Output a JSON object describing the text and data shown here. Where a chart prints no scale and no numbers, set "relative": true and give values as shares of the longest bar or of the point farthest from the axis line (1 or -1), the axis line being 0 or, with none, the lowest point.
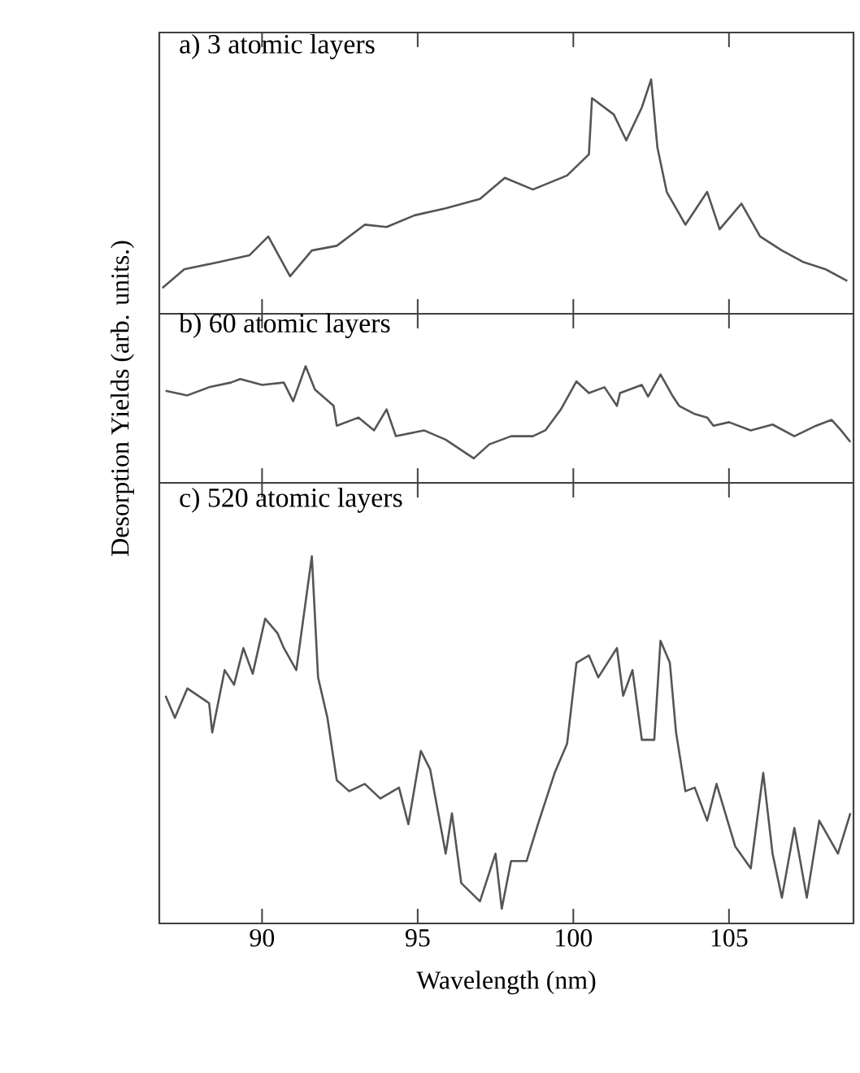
{
  "chart_data": [
    {
      "type": "line",
      "title": "a) 3 atomic layers",
      "relative": true,
      "xlim": [
        86.7,
        109
      ],
      "xticks": [
        90,
        95,
        100,
        105
      ],
      "tick_labels": false,
      "series": [
        {
          "color": "#555555",
          "x": [
            86.8,
            87.5,
            88.6,
            89.6,
            90.2,
            90.9,
            91.6,
            92.4,
            93.3,
            94.0,
            94.9,
            95.9,
            97.0,
            97.8,
            98.7,
            99.8,
            100.5,
            100.6,
            101.3,
            101.7,
            102.2,
            102.5,
            102.7,
            103.0,
            103.6,
            104.3,
            104.7,
            105.4,
            106.0,
            106.7,
            107.4,
            108.1,
            108.8
          ],
          "values": [
            0.11,
            0.19,
            0.22,
            0.25,
            0.33,
            0.16,
            0.27,
            0.29,
            0.38,
            0.37,
            0.42,
            0.45,
            0.49,
            0.58,
            0.53,
            0.59,
            0.68,
            0.92,
            0.85,
            0.74,
            0.88,
            1.0,
            0.71,
            0.52,
            0.38,
            0.52,
            0.36,
            0.47,
            0.33,
            0.27,
            0.22,
            0.19,
            0.14
          ]
        }
      ]
    },
    {
      "type": "line",
      "title": "b) 60 atomic layers",
      "ylabel": "Desorption Yields (arb. units.)",
      "relative": true,
      "xlim": [
        86.7,
        109
      ],
      "xticks": [
        90,
        95,
        100,
        105
      ],
      "tick_labels": false,
      "series": [
        {
          "color": "#555555",
          "x": [
            86.9,
            87.6,
            88.3,
            89.0,
            89.3,
            90.0,
            90.7,
            91.0,
            91.4,
            91.7,
            92.3,
            92.4,
            93.1,
            93.6,
            94.0,
            94.3,
            95.2,
            95.9,
            96.8,
            97.3,
            98.0,
            98.7,
            99.1,
            99.6,
            100.1,
            100.5,
            101.0,
            101.4,
            101.5,
            102.2,
            102.4,
            102.8,
            103.2,
            103.4,
            103.9,
            104.3,
            104.5,
            105.0,
            105.7,
            106.4,
            107.1,
            107.8,
            108.3,
            108.6,
            108.9
          ],
          "values": [
            0.79,
            0.75,
            0.82,
            0.86,
            0.89,
            0.84,
            0.86,
            0.7,
            1.0,
            0.8,
            0.66,
            0.49,
            0.56,
            0.45,
            0.63,
            0.4,
            0.45,
            0.37,
            0.21,
            0.33,
            0.4,
            0.4,
            0.45,
            0.63,
            0.87,
            0.77,
            0.82,
            0.66,
            0.77,
            0.84,
            0.74,
            0.93,
            0.74,
            0.66,
            0.59,
            0.56,
            0.49,
            0.52,
            0.45,
            0.5,
            0.4,
            0.49,
            0.54,
            0.45,
            0.35
          ]
        }
      ]
    },
    {
      "type": "line",
      "title": "c) 520 atomic layers",
      "xlabel": "Wavelength (nm)",
      "relative": true,
      "xlim": [
        86.7,
        109
      ],
      "xticks": [
        90,
        95,
        100,
        105
      ],
      "tick_labels": "x",
      "series": [
        {
          "color": "#555555",
          "x": [
            86.9,
            87.2,
            87.6,
            88.3,
            88.4,
            88.8,
            89.1,
            89.4,
            89.7,
            90.1,
            90.5,
            90.7,
            91.1,
            91.6,
            91.8,
            92.1,
            92.4,
            92.8,
            93.3,
            93.8,
            94.4,
            94.7,
            95.1,
            95.4,
            95.9,
            96.1,
            96.4,
            97.0,
            97.5,
            97.7,
            98.0,
            98.5,
            98.9,
            99.4,
            99.8,
            100.1,
            100.5,
            100.8,
            101.4,
            101.6,
            101.9,
            102.2,
            102.6,
            102.8,
            103.1,
            103.3,
            103.6,
            103.9,
            104.3,
            104.6,
            105.2,
            105.7,
            106.1,
            106.4,
            106.7,
            107.1,
            107.5,
            107.9,
            108.5,
            108.9
          ],
          "values": [
            0.62,
            0.56,
            0.64,
            0.6,
            0.52,
            0.69,
            0.65,
            0.75,
            0.68,
            0.83,
            0.79,
            0.75,
            0.69,
            1.0,
            0.67,
            0.56,
            0.39,
            0.36,
            0.38,
            0.34,
            0.37,
            0.27,
            0.47,
            0.42,
            0.19,
            0.3,
            0.11,
            0.06,
            0.19,
            0.04,
            0.17,
            0.17,
            0.28,
            0.41,
            0.49,
            0.71,
            0.73,
            0.67,
            0.75,
            0.62,
            0.69,
            0.5,
            0.5,
            0.77,
            0.71,
            0.52,
            0.36,
            0.37,
            0.28,
            0.38,
            0.21,
            0.15,
            0.41,
            0.19,
            0.07,
            0.26,
            0.07,
            0.28,
            0.19,
            0.3
          ]
        }
      ]
    }
  ]
}
